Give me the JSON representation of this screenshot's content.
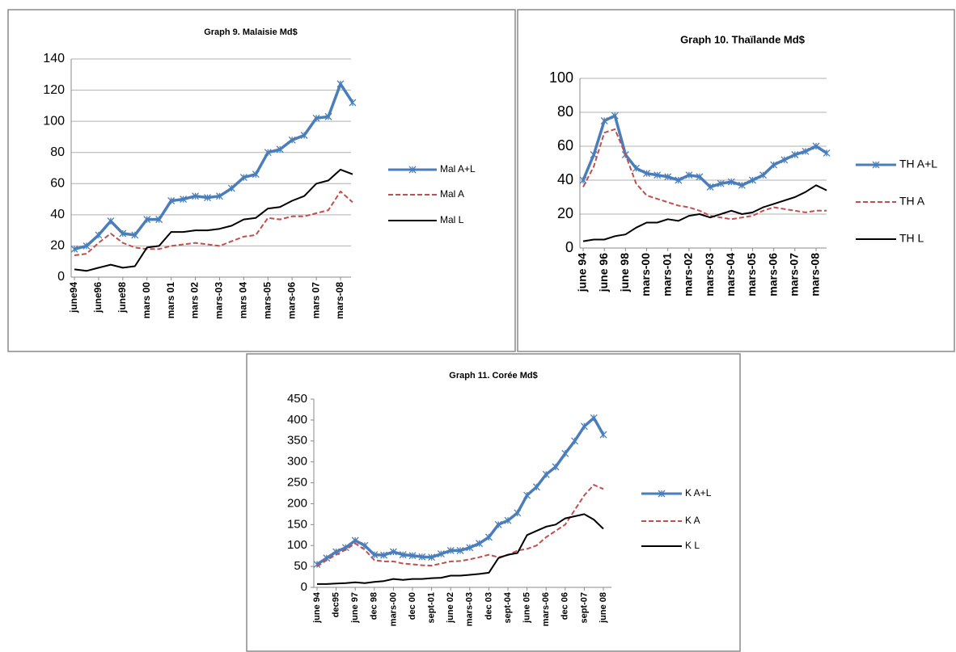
{
  "chart_data": [
    {
      "type": "line",
      "title": "Graph 9. Malaisie Md$",
      "categories": [
        "june94",
        null,
        "june96",
        null,
        "june98",
        null,
        "mars 00",
        null,
        "mars 01",
        null,
        "mars 02",
        null,
        "mars-03",
        null,
        "mars 04",
        null,
        "mars-05",
        null,
        "mars-06",
        null,
        "mars 07",
        null,
        "mars-08",
        null
      ],
      "series": [
        {
          "name": "Mal A+L",
          "color": "#4a7ebb",
          "line_style": "solid",
          "marker": "x",
          "values": [
            18,
            20,
            27,
            36,
            28,
            27,
            37,
            37,
            49,
            50,
            52,
            51,
            52,
            57,
            64,
            66,
            80,
            82,
            88,
            91,
            102,
            103,
            124,
            112
          ]
        },
        {
          "name": "Mal A",
          "color": "#c0504d",
          "line_style": "dashed",
          "values": [
            14,
            15,
            22,
            28,
            22,
            19,
            18,
            18,
            20,
            21,
            22,
            21,
            20,
            23,
            26,
            27,
            38,
            37,
            39,
            39,
            41,
            43,
            55,
            48
          ]
        },
        {
          "name": "Mal L",
          "color": "#000000",
          "line_style": "solid",
          "values": [
            5,
            4,
            6,
            8,
            6,
            7,
            19,
            20,
            29,
            29,
            30,
            30,
            31,
            33,
            37,
            38,
            44,
            45,
            49,
            52,
            60,
            62,
            69,
            66
          ]
        }
      ],
      "ylim": [
        0,
        140
      ],
      "yticks": [
        0,
        20,
        40,
        60,
        80,
        100,
        120,
        140
      ],
      "grid": true
    },
    {
      "type": "line",
      "title": "Graph 10. Thaïlande Md$",
      "categories": [
        "june 94",
        null,
        "june 96",
        null,
        "june 98",
        null,
        "mars-00",
        null,
        "mars-01",
        null,
        "mars-02",
        null,
        "mars-03",
        null,
        "mars-04",
        null,
        "mars-05",
        null,
        "mars-06",
        null,
        "mars-07",
        null,
        "mars-08",
        null
      ],
      "series": [
        {
          "name": "TH A+L",
          "color": "#4a7ebb",
          "line_style": "solid",
          "marker": "x",
          "values": [
            40,
            55,
            75,
            78,
            55,
            47,
            44,
            43,
            42,
            40,
            43,
            42,
            36,
            38,
            39,
            37,
            40,
            43,
            49,
            52,
            55,
            57,
            60,
            56
          ]
        },
        {
          "name": "TH A",
          "color": "#c0504d",
          "line_style": "dashed",
          "values": [
            36,
            48,
            68,
            70,
            55,
            38,
            31,
            29,
            27,
            25,
            24,
            22,
            19,
            18,
            17,
            18,
            19,
            22,
            24,
            23,
            22,
            21,
            22,
            22
          ]
        },
        {
          "name": "TH L",
          "color": "#000000",
          "line_style": "solid",
          "values": [
            4,
            5,
            5,
            7,
            8,
            12,
            15,
            15,
            17,
            16,
            19,
            20,
            18,
            20,
            22,
            20,
            21,
            24,
            26,
            28,
            30,
            33,
            37,
            34
          ]
        }
      ],
      "ylim": [
        0,
        100
      ],
      "yticks": [
        0,
        20,
        40,
        60,
        80,
        100
      ],
      "grid": true
    },
    {
      "type": "line",
      "title": "Graph 11. Corée Md$",
      "categories": [
        "june 94",
        null,
        "dec95",
        null,
        "june 97",
        null,
        "dec 98",
        null,
        "mars-00",
        null,
        "dec 00",
        null,
        "sept-01",
        null,
        "june 02",
        null,
        "mars-03",
        null,
        "dec 03",
        null,
        "sept-04",
        null,
        "june 05",
        null,
        "mars-06",
        null,
        "dec 06",
        null,
        "sept-07",
        null,
        "june 08"
      ],
      "series": [
        {
          "name": "K A+L",
          "color": "#4a7ebb",
          "line_style": "solid",
          "marker": "x",
          "values": [
            55,
            70,
            85,
            95,
            112,
            100,
            78,
            77,
            85,
            78,
            76,
            73,
            72,
            80,
            88,
            88,
            95,
            105,
            120,
            150,
            160,
            178,
            220,
            240,
            270,
            288,
            320,
            350,
            385,
            405,
            365
          ]
        },
        {
          "name": "K A",
          "color": "#c0504d",
          "line_style": "dashed",
          "values": [
            50,
            65,
            78,
            90,
            105,
            90,
            65,
            62,
            62,
            57,
            55,
            53,
            52,
            57,
            62,
            63,
            67,
            72,
            78,
            72,
            77,
            88,
            92,
            100,
            120,
            135,
            150,
            185,
            220,
            245,
            235
          ]
        },
        {
          "name": "K L",
          "color": "#000000",
          "line_style": "solid",
          "values": [
            8,
            8,
            9,
            10,
            12,
            10,
            13,
            15,
            20,
            18,
            20,
            20,
            22,
            23,
            28,
            28,
            30,
            32,
            35,
            70,
            78,
            82,
            125,
            135,
            145,
            150,
            165,
            170,
            175,
            162,
            140
          ]
        }
      ],
      "ylim": [
        0,
        450
      ],
      "yticks": [
        0,
        50,
        100,
        150,
        200,
        250,
        300,
        350,
        400,
        450
      ],
      "grid": false
    }
  ]
}
